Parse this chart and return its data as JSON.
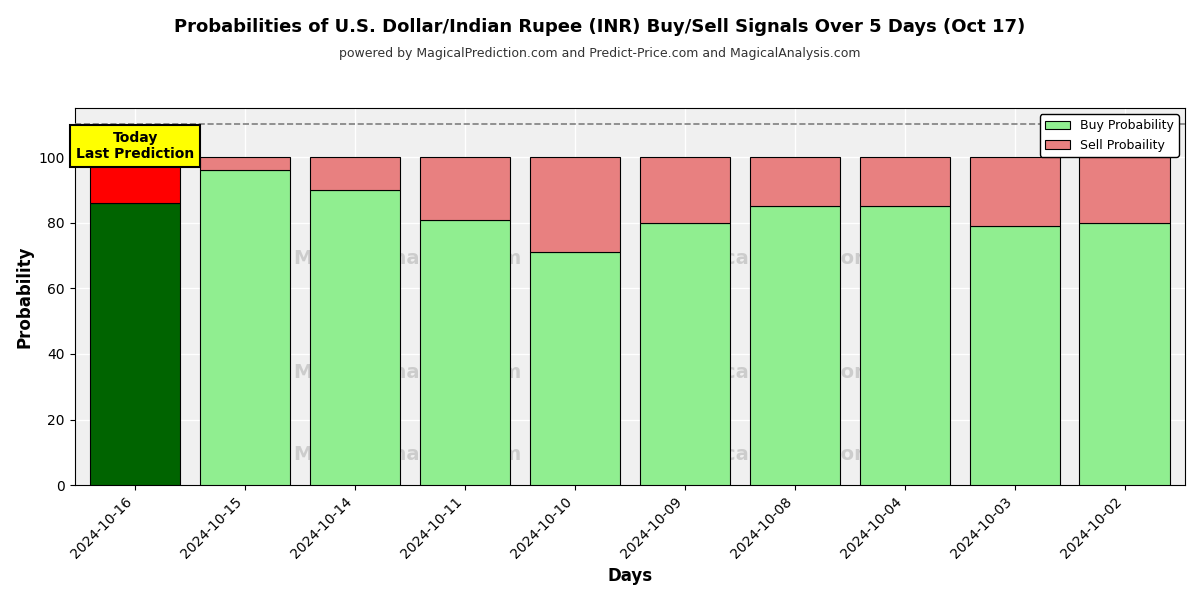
{
  "title": "Probabilities of U.S. Dollar/Indian Rupee (INR) Buy/Sell Signals Over 5 Days (Oct 17)",
  "subtitle": "powered by MagicalPrediction.com and Predict-Price.com and MagicalAnalysis.com",
  "xlabel": "Days",
  "ylabel": "Probability",
  "dates": [
    "2024-10-16",
    "2024-10-15",
    "2024-10-14",
    "2024-10-11",
    "2024-10-10",
    "2024-10-09",
    "2024-10-08",
    "2024-10-04",
    "2024-10-03",
    "2024-10-02"
  ],
  "buy_probs": [
    86,
    96,
    90,
    81,
    71,
    80,
    85,
    85,
    79,
    80
  ],
  "sell_probs": [
    14,
    4,
    10,
    19,
    29,
    20,
    15,
    15,
    21,
    20
  ],
  "today_index": 0,
  "today_buy_color": "#006400",
  "today_sell_color": "#ff0000",
  "buy_color": "#90EE90",
  "sell_color": "#E88080",
  "bar_edge_color": "black",
  "ylim": [
    0,
    115
  ],
  "yticks": [
    0,
    20,
    40,
    60,
    80,
    100
  ],
  "dashed_line_y": 110,
  "today_label": "Today\nLast Prediction",
  "legend_buy": "Buy Probability",
  "legend_sell": "Sell Probaility",
  "background_color": "white",
  "plot_bg_color": "#f0f0f0"
}
